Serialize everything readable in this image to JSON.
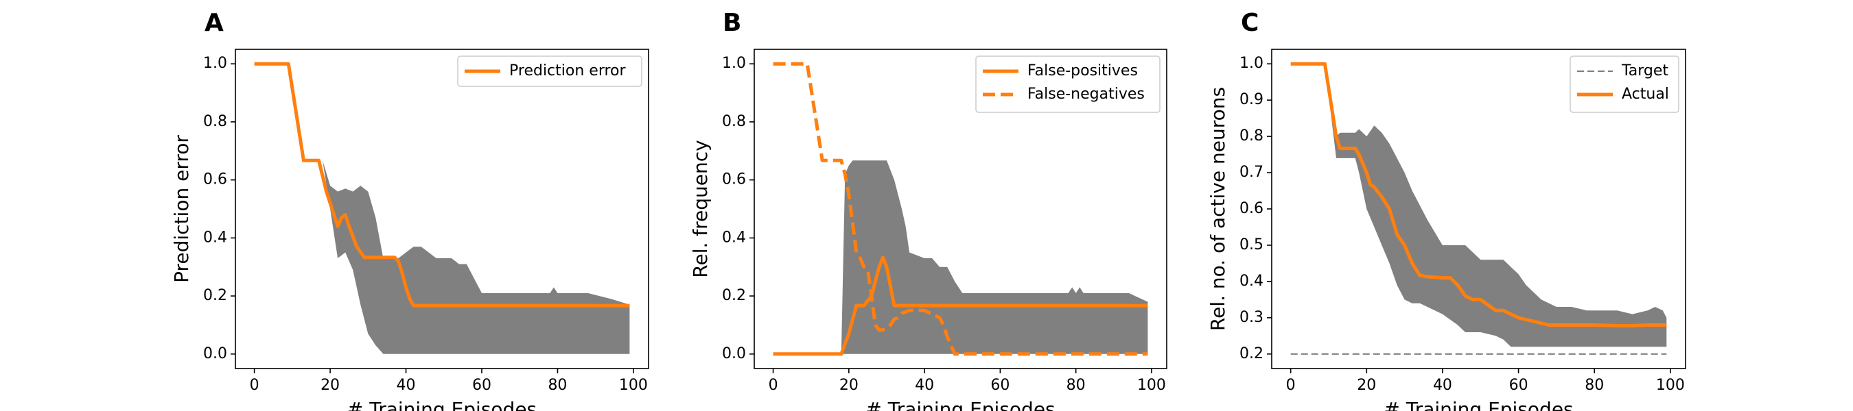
{
  "chart_data": [
    {
      "panel": "A",
      "type": "line",
      "xlabel": "# Training Episodes",
      "ylabel": "Prediction error",
      "xlim": [
        -5,
        104
      ],
      "ylim": [
        -0.05,
        1.05
      ],
      "xticks": [
        0,
        20,
        40,
        60,
        80,
        100
      ],
      "yticks": [
        0.0,
        0.2,
        0.4,
        0.6,
        0.8,
        1.0
      ],
      "ytick_decimals": 1,
      "legend_placement": "top-right",
      "band": {
        "color": "#808080",
        "x": [
          0,
          9,
          13,
          18,
          20,
          22,
          24,
          26,
          28,
          30,
          32,
          34,
          36,
          38,
          40,
          42,
          44,
          46,
          48,
          50,
          52,
          54,
          56,
          58,
          60,
          62,
          64,
          66,
          70,
          74,
          78,
          79,
          80,
          81,
          84,
          88,
          94,
          99
        ],
        "upper": [
          1.0,
          1.0,
          0.667,
          0.667,
          0.58,
          0.56,
          0.57,
          0.56,
          0.58,
          0.56,
          0.47,
          0.33,
          0.33,
          0.33,
          0.35,
          0.37,
          0.37,
          0.35,
          0.33,
          0.33,
          0.33,
          0.31,
          0.31,
          0.26,
          0.21,
          0.21,
          0.21,
          0.21,
          0.21,
          0.21,
          0.21,
          0.23,
          0.21,
          0.21,
          0.21,
          0.21,
          0.19,
          0.17
        ],
        "lower": [
          1.0,
          1.0,
          0.667,
          0.667,
          0.5,
          0.33,
          0.35,
          0.29,
          0.17,
          0.07,
          0.03,
          0.0,
          0.0,
          0.0,
          0.0,
          0.0,
          0.0,
          0.0,
          0.0,
          0.0,
          0.0,
          0.0,
          0.0,
          0.0,
          0.0,
          0.0,
          0.0,
          0.0,
          0.0,
          0.0,
          0.0,
          0.0,
          0.0,
          0.0,
          0.0,
          0.0,
          0.0,
          0.0
        ]
      },
      "series": [
        {
          "name": "Prediction error",
          "color": "#ff7f0e",
          "dash": "solid",
          "x": [
            0,
            9,
            13,
            17,
            19,
            21,
            22,
            23,
            24,
            25,
            27,
            29,
            31,
            33,
            35,
            37,
            38,
            39,
            40,
            41,
            42,
            50,
            60,
            70,
            80,
            90,
            99
          ],
          "y": [
            1.0,
            1.0,
            0.667,
            0.667,
            0.56,
            0.48,
            0.44,
            0.47,
            0.48,
            0.44,
            0.37,
            0.333,
            0.333,
            0.333,
            0.333,
            0.333,
            0.32,
            0.28,
            0.23,
            0.19,
            0.167,
            0.167,
            0.167,
            0.167,
            0.167,
            0.167,
            0.167
          ]
        }
      ]
    },
    {
      "panel": "B",
      "type": "line",
      "xlabel": "# Training Episodes",
      "ylabel": "Rel. frequency",
      "xlim": [
        -5,
        104
      ],
      "ylim": [
        -0.05,
        1.05
      ],
      "xticks": [
        0,
        20,
        40,
        60,
        80,
        100
      ],
      "yticks": [
        0.0,
        0.2,
        0.4,
        0.6,
        0.8,
        1.0
      ],
      "ytick_decimals": 1,
      "legend_placement": "top-right",
      "band": {
        "color": "#808080",
        "x": [
          0,
          18,
          19,
          20,
          21,
          22,
          24,
          26,
          28,
          30,
          32,
          33,
          34,
          35,
          36,
          38,
          40,
          42,
          44,
          46,
          48,
          50,
          60,
          70,
          78,
          79,
          80,
          81,
          82,
          88,
          94,
          99
        ],
        "upper": [
          0.0,
          0.0,
          0.62,
          0.65,
          0.667,
          0.667,
          0.667,
          0.667,
          0.667,
          0.667,
          0.6,
          0.55,
          0.5,
          0.44,
          0.35,
          0.34,
          0.33,
          0.33,
          0.3,
          0.3,
          0.25,
          0.21,
          0.21,
          0.21,
          0.21,
          0.23,
          0.21,
          0.23,
          0.21,
          0.21,
          0.21,
          0.18
        ],
        "lower": [
          0.0,
          0.0,
          0.0,
          0.0,
          0.0,
          0.0,
          0.0,
          0.0,
          0.0,
          0.0,
          0.0,
          0.0,
          0.0,
          0.0,
          0.0,
          0.0,
          0.0,
          0.0,
          0.0,
          0.0,
          0.0,
          0.0,
          0.0,
          0.0,
          0.0,
          0.0,
          0.0,
          0.0,
          0.0,
          0.0,
          0.0,
          0.0
        ]
      },
      "series": [
        {
          "name": "False-positives",
          "color": "#ff7f0e",
          "dash": "solid",
          "x": [
            0,
            18,
            20,
            22,
            24,
            26,
            28,
            29,
            30,
            32,
            33,
            40,
            50,
            60,
            70,
            80,
            90,
            99
          ],
          "y": [
            0.0,
            0.0,
            0.07,
            0.167,
            0.167,
            0.2,
            0.3,
            0.333,
            0.3,
            0.167,
            0.167,
            0.167,
            0.167,
            0.167,
            0.167,
            0.167,
            0.167,
            0.167
          ]
        },
        {
          "name": "False-negatives",
          "color": "#ff7f0e",
          "dash": "dashed",
          "x": [
            0,
            9,
            13,
            16,
            18,
            19,
            20,
            21,
            22,
            23,
            24,
            25,
            26,
            27,
            28,
            29,
            31,
            32,
            33,
            34,
            36,
            40,
            44,
            45,
            46,
            47,
            48,
            50,
            60,
            70,
            80,
            90,
            99
          ],
          "y": [
            1.0,
            1.0,
            0.667,
            0.667,
            0.667,
            0.62,
            0.55,
            0.45,
            0.35,
            0.33,
            0.3,
            0.29,
            0.2,
            0.1,
            0.083,
            0.083,
            0.1,
            0.12,
            0.125,
            0.14,
            0.15,
            0.15,
            0.125,
            0.1,
            0.06,
            0.03,
            0.0,
            0.0,
            0.0,
            0.0,
            0.0,
            0.0,
            0.0
          ]
        }
      ]
    },
    {
      "panel": "C",
      "type": "line",
      "xlabel": "# Training Episodes",
      "ylabel": "Rel. no. of active neurons",
      "xlim": [
        -5,
        104
      ],
      "ylim": [
        0.16,
        1.04
      ],
      "xticks": [
        0,
        20,
        40,
        60,
        80,
        100
      ],
      "yticks": [
        0.2,
        0.3,
        0.4,
        0.5,
        0.6,
        0.7,
        0.8,
        0.9,
        1.0
      ],
      "ytick_decimals": 1,
      "legend_placement": "top-right",
      "band": {
        "color": "#808080",
        "x": [
          0,
          9,
          12,
          13,
          17,
          18,
          20,
          22,
          24,
          26,
          28,
          30,
          32,
          34,
          36,
          40,
          44,
          46,
          50,
          54,
          56,
          58,
          60,
          62,
          64,
          66,
          70,
          74,
          78,
          82,
          86,
          90,
          94,
          96,
          98,
          99
        ],
        "upper": [
          1.0,
          1.0,
          0.8,
          0.81,
          0.81,
          0.82,
          0.8,
          0.83,
          0.81,
          0.78,
          0.74,
          0.7,
          0.65,
          0.61,
          0.57,
          0.5,
          0.5,
          0.5,
          0.46,
          0.46,
          0.46,
          0.44,
          0.42,
          0.39,
          0.37,
          0.35,
          0.33,
          0.33,
          0.32,
          0.32,
          0.32,
          0.31,
          0.32,
          0.33,
          0.32,
          0.3
        ],
        "lower": [
          1.0,
          1.0,
          0.74,
          0.74,
          0.74,
          0.7,
          0.6,
          0.55,
          0.5,
          0.45,
          0.39,
          0.35,
          0.34,
          0.34,
          0.33,
          0.31,
          0.28,
          0.26,
          0.26,
          0.25,
          0.24,
          0.22,
          0.22,
          0.22,
          0.22,
          0.22,
          0.22,
          0.22,
          0.22,
          0.22,
          0.22,
          0.22,
          0.22,
          0.22,
          0.22,
          0.22
        ]
      },
      "series": [
        {
          "name": "Target",
          "color": "#808080",
          "dash": "thin-dashed",
          "x": [
            0,
            99
          ],
          "y": [
            0.2,
            0.2
          ]
        },
        {
          "name": "Actual",
          "color": "#ff7f0e",
          "dash": "solid",
          "x": [
            0,
            9,
            12,
            13,
            17,
            18,
            20,
            21,
            22,
            24,
            26,
            28,
            30,
            32,
            34,
            36,
            40,
            42,
            44,
            46,
            48,
            50,
            52,
            54,
            56,
            58,
            60,
            62,
            64,
            66,
            68,
            70,
            80,
            86,
            90,
            94,
            96,
            99
          ],
          "y": [
            1.0,
            1.0,
            0.8,
            0.767,
            0.767,
            0.75,
            0.7,
            0.667,
            0.66,
            0.633,
            0.6,
            0.53,
            0.5,
            0.45,
            0.417,
            0.413,
            0.41,
            0.41,
            0.39,
            0.36,
            0.35,
            0.35,
            0.335,
            0.32,
            0.32,
            0.31,
            0.3,
            0.295,
            0.29,
            0.285,
            0.28,
            0.28,
            0.28,
            0.278,
            0.278,
            0.28,
            0.28,
            0.28
          ]
        }
      ]
    }
  ]
}
